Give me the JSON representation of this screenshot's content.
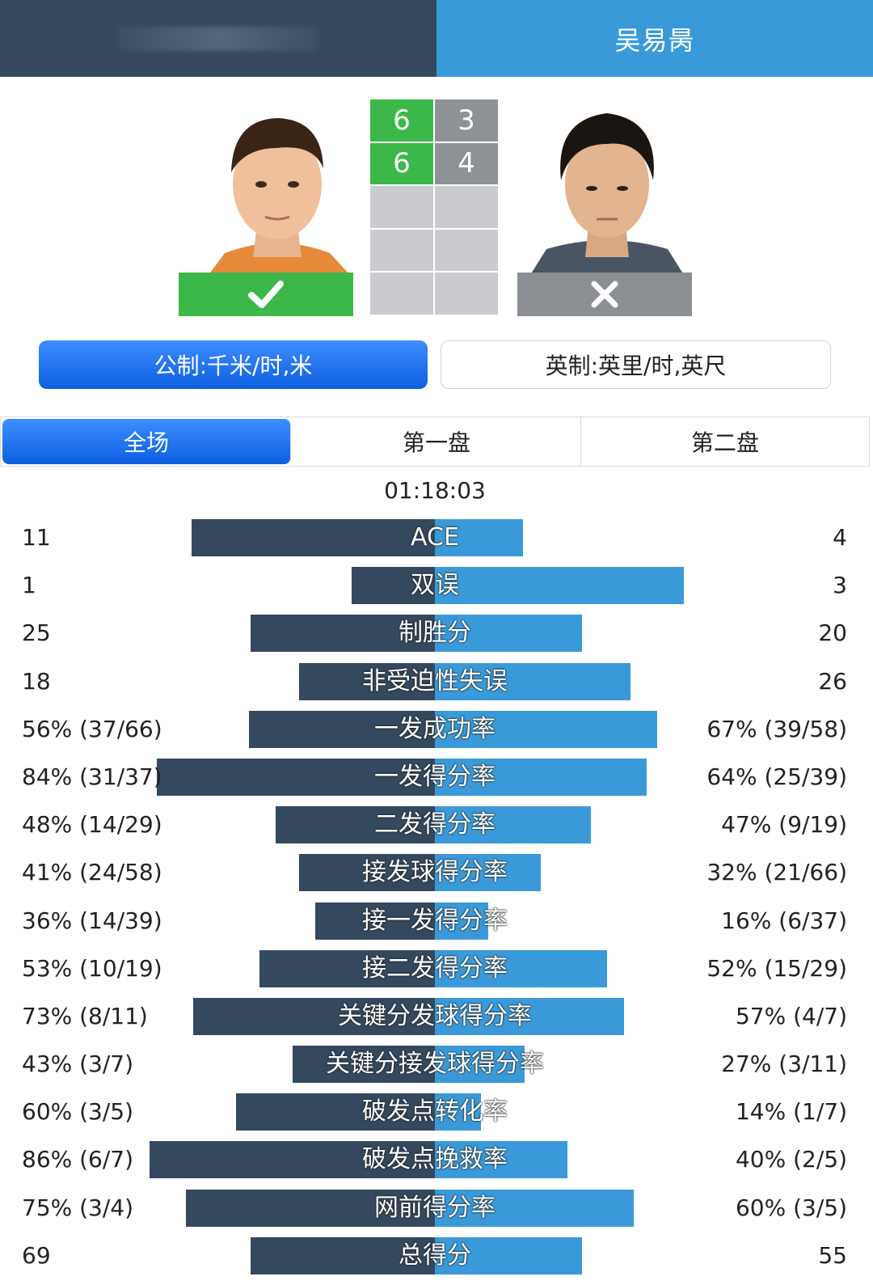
{
  "header": {
    "player_right_name": "吴易昺"
  },
  "match": {
    "sets": [
      {
        "p1": "6",
        "p2": "3"
      },
      {
        "p1": "6",
        "p2": "4"
      },
      {
        "p1": "",
        "p2": ""
      },
      {
        "p1": "",
        "p2": ""
      },
      {
        "p1": "",
        "p2": ""
      }
    ],
    "p1_result_icon": "check-icon",
    "p2_result_icon": "close-icon",
    "duration": "01:18:03"
  },
  "units": {
    "metric_label": "公制:千米/时,米",
    "imperial_label": "英制:英里/时,英尺",
    "selected": "metric"
  },
  "tabs": [
    {
      "label": "全场",
      "active": true
    },
    {
      "label": "第一盘",
      "active": false
    },
    {
      "label": "第二盘",
      "active": false
    }
  ],
  "colors": {
    "left_bar": "#34495e",
    "right_bar": "#3a9ad9",
    "win": "#3cb84a",
    "lose": "#8b8e92",
    "active_tab": "#1e6ff0"
  },
  "stats": [
    {
      "label": "ACE",
      "left": "11",
      "right": "4",
      "left_fraction": 0.733,
      "right_fraction": 0.267
    },
    {
      "label": "双误",
      "left": "1",
      "right": "3",
      "left_fraction": 0.25,
      "right_fraction": 0.75
    },
    {
      "label": "制胜分",
      "left": "25",
      "right": "20",
      "left_fraction": 0.556,
      "right_fraction": 0.444
    },
    {
      "label": "非受迫性失误",
      "left": "18",
      "right": "26",
      "left_fraction": 0.409,
      "right_fraction": 0.591
    },
    {
      "label": "一发成功率",
      "left": "56% (37/66)",
      "right": "67% (39/58)",
      "left_fraction": 0.56,
      "right_fraction": 0.67
    },
    {
      "label": "一发得分率",
      "left": "84% (31/37)",
      "right": "64% (25/39)",
      "left_fraction": 0.84,
      "right_fraction": 0.64
    },
    {
      "label": "二发得分率",
      "left": "48% (14/29)",
      "right": "47% (9/19)",
      "left_fraction": 0.48,
      "right_fraction": 0.47
    },
    {
      "label": "接发球得分率",
      "left": "41% (24/58)",
      "right": "32% (21/66)",
      "left_fraction": 0.41,
      "right_fraction": 0.32
    },
    {
      "label": "接一发得分率",
      "left": "36% (14/39)",
      "right": "16% (6/37)",
      "left_fraction": 0.36,
      "right_fraction": 0.16
    },
    {
      "label": "接二发得分率",
      "left": "53% (10/19)",
      "right": "52% (15/29)",
      "left_fraction": 0.53,
      "right_fraction": 0.52
    },
    {
      "label": "关键分发球得分率",
      "left": "73% (8/11)",
      "right": "57% (4/7)",
      "left_fraction": 0.73,
      "right_fraction": 0.57
    },
    {
      "label": "关键分接发球得分率",
      "left": "43% (3/7)",
      "right": "27% (3/11)",
      "left_fraction": 0.43,
      "right_fraction": 0.27
    },
    {
      "label": "破发点转化率",
      "left": "60% (3/5)",
      "right": "14% (1/7)",
      "left_fraction": 0.6,
      "right_fraction": 0.14
    },
    {
      "label": "破发点挽救率",
      "left": "86% (6/7)",
      "right": "40% (2/5)",
      "left_fraction": 0.86,
      "right_fraction": 0.4
    },
    {
      "label": "网前得分率",
      "left": "75% (3/4)",
      "right": "60% (3/5)",
      "left_fraction": 0.75,
      "right_fraction": 0.6
    },
    {
      "label": "总得分",
      "left": "69",
      "right": "55",
      "left_fraction": 0.556,
      "right_fraction": 0.444
    }
  ]
}
